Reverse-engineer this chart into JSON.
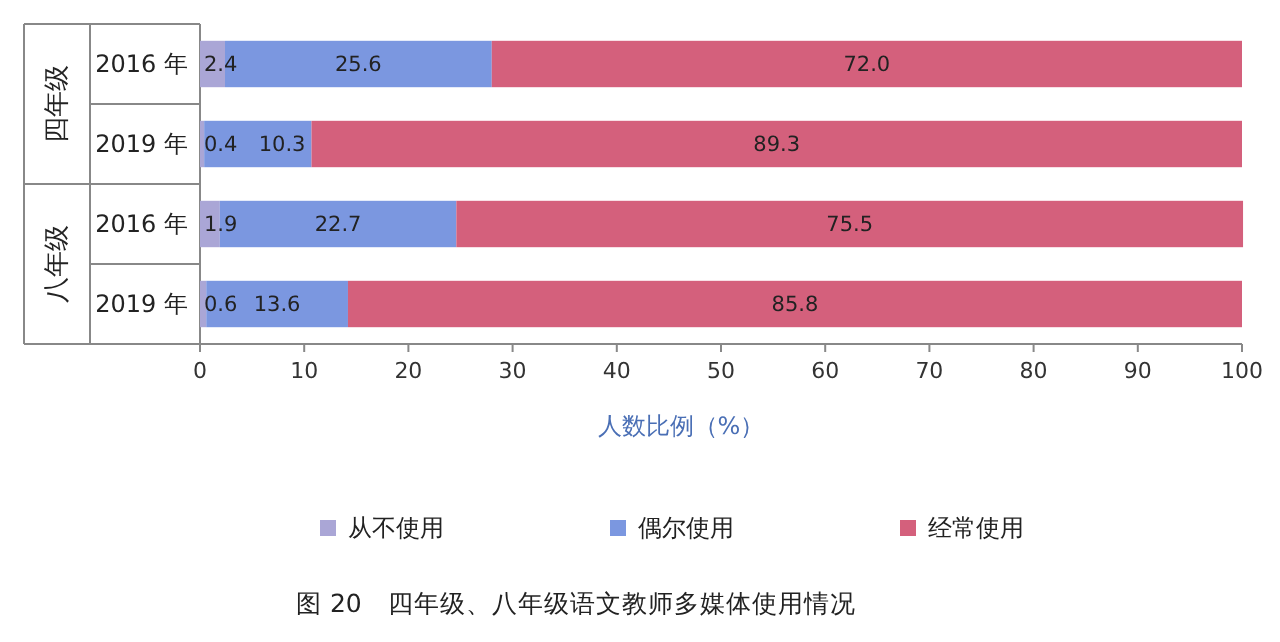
{
  "chart_data": {
    "type": "bar",
    "orientation": "horizontal",
    "stacked": true,
    "title": "图 20　四年级、八年级语文教师多媒体使用情况",
    "xlabel": "人数比例（%）",
    "categories": [
      "2016 年",
      "2019 年",
      "2016 年",
      "2019 年"
    ],
    "annotations": [
      "四年级",
      "八年级"
    ],
    "series": [
      {
        "name": "从不使用",
        "color": "#aaa6d6",
        "values": [
          2.4,
          0.4,
          1.9,
          0.6
        ],
        "value_labels": [
          "2.4",
          "0.4",
          "1.9",
          "0.6"
        ]
      },
      {
        "name": "偶尔使用",
        "color": "#7b97e0",
        "values": [
          25.6,
          10.3,
          22.7,
          13.6
        ],
        "value_labels": [
          "25.6",
          "10.3",
          "22.7",
          "13.6"
        ]
      },
      {
        "name": "经常使用",
        "color": "#d4607c",
        "values": [
          72.0,
          89.3,
          75.5,
          85.8
        ],
        "value_labels": [
          "72.0",
          "89.3",
          "75.5",
          "85.8"
        ]
      }
    ],
    "xlim": [
      0,
      100
    ],
    "xticks": [
      0,
      10,
      20,
      30,
      40,
      50,
      60,
      70,
      80,
      90,
      100
    ],
    "legend": "bottom",
    "grid": false
  }
}
